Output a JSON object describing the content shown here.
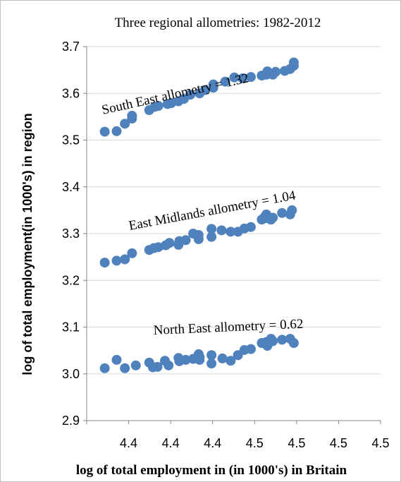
{
  "chart_data": {
    "type": "scatter",
    "title": "Three regional allometries: 1982-2012",
    "xlabel": "log of total employment in (in 1000's) in Britain",
    "ylabel": "log of total employment(in 1000's)  in region",
    "xlim": [
      4.36,
      4.57
    ],
    "ylim": [
      2.9,
      3.7
    ],
    "y_ticks": [
      2.9,
      3.0,
      3.1,
      3.2,
      3.3,
      3.4,
      3.5,
      3.6,
      3.7
    ],
    "y_tick_labels": [
      "2.9",
      "3.0",
      "3.1",
      "3.2",
      "3.3",
      "3.4",
      "3.5",
      "3.6",
      "3.7"
    ],
    "x_ticks": [
      4.36,
      4.39,
      4.42,
      4.45,
      4.48,
      4.51,
      4.54,
      4.57
    ],
    "x_tick_labels": [
      "4.4",
      "4.4",
      "4.4",
      "4.4",
      "4.5",
      "4.5",
      "4.5",
      "4.5"
    ],
    "grid": "horizontal",
    "marker_color": "#4F81BD",
    "annotations": [
      "South East allometry =  1.32",
      "East Midlands allometry  = 1.04",
      "North East allometry   = 0.62"
    ],
    "series": [
      {
        "x": [
          4.3729,
          4.3814,
          4.3873,
          4.3924,
          4.3924,
          4.4047,
          4.4086,
          4.4112,
          4.4178,
          4.4204,
          4.4256,
          4.4295,
          4.4341,
          4.4407,
          4.4446,
          4.4505,
          4.4505,
          4.459,
          4.4655,
          4.4714,
          4.4773,
          4.4851,
          4.4884,
          4.4891,
          4.4917,
          4.493,
          4.495,
          4.5015,
          4.5054,
          4.508,
          4.508
        ],
        "y": [
          3.518,
          3.519,
          3.535,
          3.546,
          3.552,
          3.564,
          3.571,
          3.573,
          3.577,
          3.579,
          3.583,
          3.588,
          3.597,
          3.6,
          3.607,
          3.612,
          3.619,
          3.625,
          3.634,
          3.632,
          3.635,
          3.638,
          3.64,
          3.647,
          3.642,
          3.64,
          3.646,
          3.648,
          3.652,
          3.659,
          3.666
        ]
      },
      {
        "x": [
          4.3729,
          4.3814,
          4.3873,
          4.3924,
          4.4047,
          4.408,
          4.4112,
          4.4165,
          4.4191,
          4.4256,
          4.4262,
          4.4308,
          4.4361,
          4.44,
          4.44,
          4.4492,
          4.4492,
          4.4564,
          4.4629,
          4.4681,
          4.4727,
          4.4773,
          4.4851,
          4.487,
          4.4884,
          4.4891,
          4.4917,
          4.493,
          4.4996,
          4.5054,
          4.5067
        ],
        "y": [
          3.238,
          3.242,
          3.245,
          3.258,
          3.265,
          3.269,
          3.271,
          3.275,
          3.28,
          3.276,
          3.284,
          3.286,
          3.3,
          3.297,
          3.288,
          3.31,
          3.293,
          3.307,
          3.304,
          3.304,
          3.311,
          3.314,
          3.33,
          3.335,
          3.341,
          3.333,
          3.33,
          3.334,
          3.344,
          3.341,
          3.35
        ]
      },
      {
        "x": [
          4.3729,
          4.3814,
          4.3873,
          4.3951,
          4.4047,
          4.4073,
          4.4106,
          4.4159,
          4.4185,
          4.4256,
          4.4262,
          4.4308,
          4.4361,
          4.44,
          4.4407,
          4.4407,
          4.4492,
          4.4492,
          4.457,
          4.4629,
          4.4681,
          4.4727,
          4.4773,
          4.4851,
          4.4884,
          4.4891,
          4.4917,
          4.493,
          4.4996,
          4.5054,
          4.508
        ],
        "y": [
          3.012,
          3.03,
          3.012,
          3.018,
          3.024,
          3.014,
          3.015,
          3.028,
          3.018,
          3.034,
          3.027,
          3.03,
          3.032,
          3.042,
          3.036,
          3.03,
          3.04,
          3.022,
          3.033,
          3.028,
          3.04,
          3.051,
          3.053,
          3.066,
          3.068,
          3.06,
          3.075,
          3.07,
          3.073,
          3.075,
          3.066
        ]
      }
    ]
  }
}
